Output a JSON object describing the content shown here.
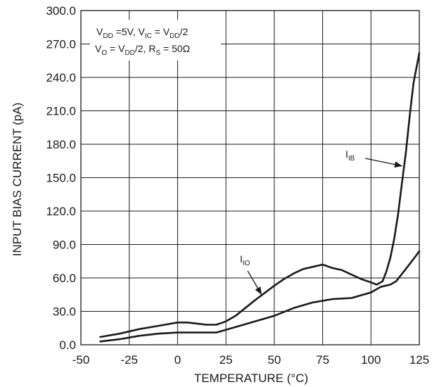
{
  "chart_data": {
    "type": "line",
    "xlabel": "TEMPERATURE (°C)",
    "ylabel": "INPUT BIAS CURRENT (pA)",
    "xlim": [
      -50,
      125
    ],
    "ylim": [
      0,
      300
    ],
    "x_ticks": [
      "-50",
      "-25",
      "0",
      "25",
      "50",
      "75",
      "100",
      "125"
    ],
    "y_ticks": [
      "0.0",
      "30.0",
      "60.0",
      "90.0",
      "120.0",
      "150.0",
      "180.0",
      "210.0",
      "240.0",
      "270.0",
      "300.0"
    ],
    "grid": true,
    "conditions": {
      "line1": {
        "v1": "V",
        "s1": "DD",
        "t1": " =5V, V",
        "s2": "IC",
        "t2": " = V",
        "s3": "DD",
        "t3": "/2"
      },
      "line2": {
        "v1": "V",
        "s1": "O",
        "t1": " = V",
        "s2": "DD",
        "t2": "/2, R",
        "s3": "S",
        "t3": " = 50Ω"
      }
    },
    "series": [
      {
        "name": "IIB",
        "label_main": "I",
        "label_sub": "IB",
        "x": [
          -40,
          -30,
          -20,
          -10,
          0,
          5,
          10,
          15,
          20,
          25,
          30,
          40,
          50,
          55,
          60,
          65,
          70,
          75,
          80,
          85,
          90,
          95,
          100,
          103,
          106,
          108,
          110,
          112,
          114,
          116,
          118,
          120,
          122,
          125
        ],
        "values": [
          7,
          10,
          14,
          17,
          20,
          20,
          19,
          18,
          18,
          21,
          26,
          40,
          53,
          59,
          64,
          68,
          70,
          72,
          69,
          67,
          63,
          59,
          56,
          54,
          57,
          66,
          78,
          95,
          117,
          145,
          172,
          205,
          235,
          262
        ]
      },
      {
        "name": "IIO",
        "label_main": "I",
        "label_sub": "IO",
        "x": [
          -40,
          -30,
          -20,
          -10,
          0,
          10,
          15,
          20,
          30,
          40,
          50,
          60,
          70,
          80,
          90,
          100,
          105,
          110,
          113,
          118,
          122,
          125
        ],
        "values": [
          3,
          5,
          8,
          10,
          11,
          11,
          11,
          11,
          16,
          21,
          26,
          33,
          38,
          41,
          42,
          47,
          52,
          54,
          57,
          68,
          77,
          84
        ]
      }
    ]
  }
}
